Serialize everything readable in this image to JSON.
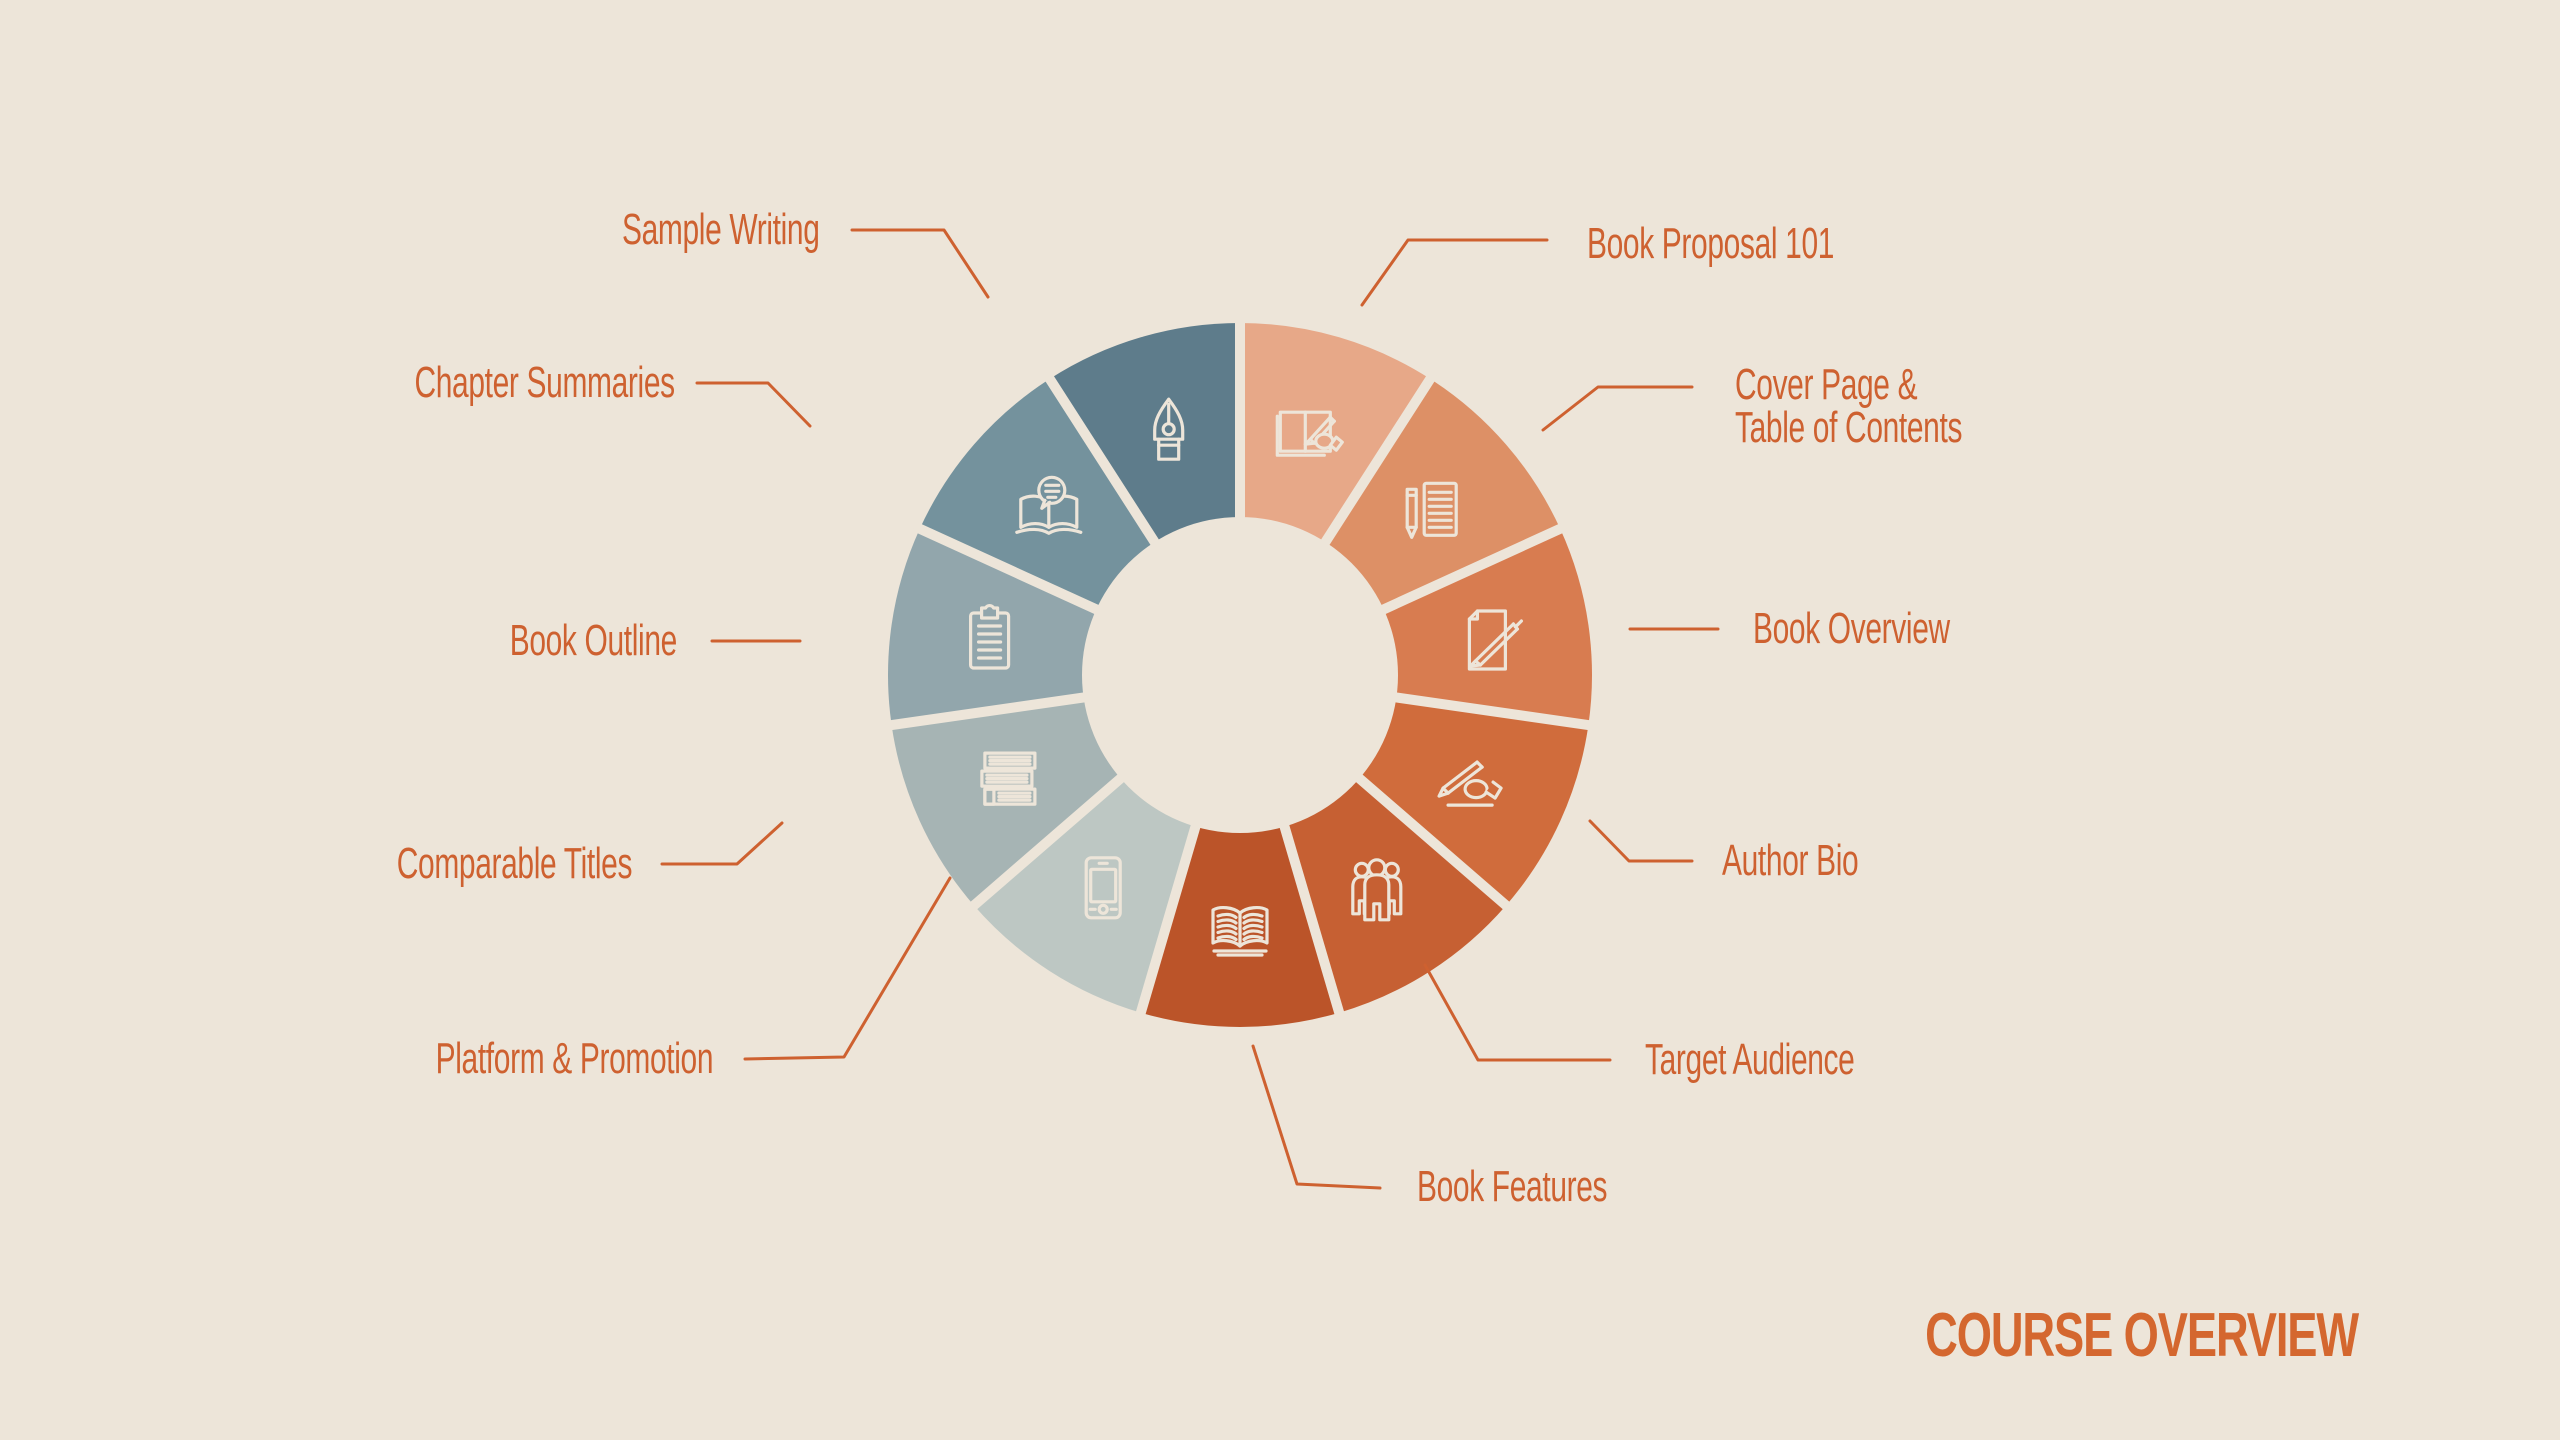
{
  "title": {
    "text": "COURSE OVERVIEW"
  },
  "colors": {
    "background": "#EDE5D9",
    "accent_text": "#CE6130",
    "title_text": "#D4672F",
    "icon_stroke": "#EDE5D9",
    "connector_line": "#CE6130"
  },
  "chart_data": {
    "type": "pie",
    "subtype": "donut-infographic",
    "title": "COURSE OVERVIEW",
    "equal_slices": true,
    "num_segments": 11,
    "slice_angle_deg": 32.7,
    "rotation": "segment boundary at 12 o'clock, segments listed clockwise from top",
    "legend": false,
    "segments": [
      {
        "label": "Book Proposal 101",
        "value": 1,
        "color": "#E7A888",
        "icon": "book-hand-write-icon"
      },
      {
        "label": "Cover Page & Table of Contents",
        "label_lines": [
          "Cover Page &",
          "Table of Contents"
        ],
        "value": 1,
        "color": "#DD9066",
        "icon": "pencil-page-icon"
      },
      {
        "label": "Book Overview",
        "value": 1,
        "color": "#D87C50",
        "icon": "page-pen-icon"
      },
      {
        "label": "Author Bio",
        "value": 1,
        "color": "#D06C3C",
        "icon": "writing-hand-icon"
      },
      {
        "label": "Target Audience",
        "value": 1,
        "color": "#C66033",
        "icon": "people-icon"
      },
      {
        "label": "Book Features",
        "value": 1,
        "color": "#BB5429",
        "icon": "open-book-icon"
      },
      {
        "label": "Platform & Promotion",
        "value": 1,
        "color": "#BDC7C3",
        "icon": "smartphone-icon"
      },
      {
        "label": "Comparable Titles",
        "value": 1,
        "color": "#A6B4B4",
        "icon": "book-stack-icon"
      },
      {
        "label": "Book Outline",
        "value": 1,
        "color": "#92A6AC",
        "icon": "clipboard-icon"
      },
      {
        "label": "Chapter Summaries",
        "value": 1,
        "color": "#74929D",
        "icon": "book-chat-icon"
      },
      {
        "label": "Sample Writing",
        "value": 1,
        "color": "#5E7C8B",
        "icon": "pen-nib-icon"
      }
    ]
  }
}
